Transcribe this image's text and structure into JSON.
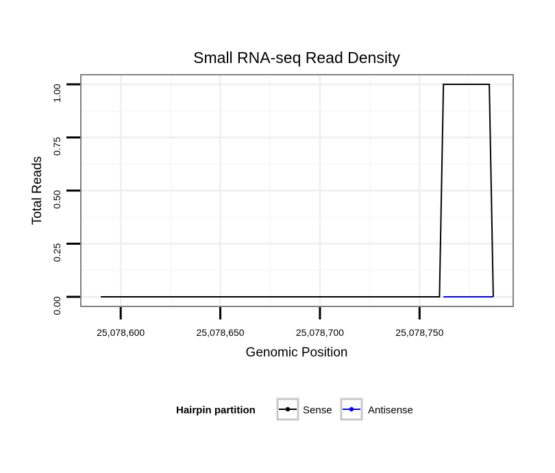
{
  "chart_data": {
    "type": "line",
    "title": "Small RNA-seq Read Density",
    "xlabel": "Genomic Position",
    "ylabel": "Total Reads",
    "xlim": [
      25078580,
      25078797
    ],
    "ylim": [
      -0.045,
      1.045
    ],
    "x_ticks": [
      25078600,
      25078650,
      25078700,
      25078750
    ],
    "x_tick_labels": [
      "25,078,600",
      "25,078,650",
      "25,078,700",
      "25,078,750"
    ],
    "y_ticks": [
      0,
      0.25,
      0.5,
      0.75,
      1.0
    ],
    "y_tick_labels": [
      "0.00",
      "0.25",
      "0.50",
      "0.75",
      "1.00"
    ],
    "grid": true,
    "series": [
      {
        "name": "Sense",
        "color": "#000000",
        "points": [
          [
            25078590,
            0
          ],
          [
            25078760,
            0
          ],
          [
            25078762,
            1
          ],
          [
            25078785,
            1
          ],
          [
            25078787,
            0
          ]
        ]
      },
      {
        "name": "Antisense",
        "color": "#0000ff",
        "points": [
          [
            25078762,
            0
          ],
          [
            25078787,
            0
          ]
        ]
      }
    ],
    "legend": {
      "title": "Hairpin partition",
      "position": "bottom",
      "items": [
        "Sense",
        "Antisense"
      ]
    }
  }
}
